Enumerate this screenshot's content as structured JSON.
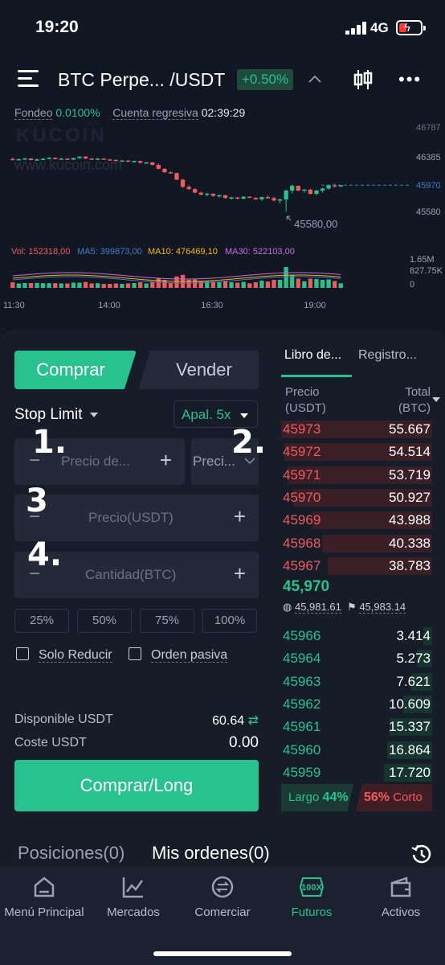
{
  "status": {
    "time": "19:20",
    "network": "4G"
  },
  "header": {
    "pair": "BTC Perpe... /USDT",
    "change": "+0.50%"
  },
  "funding": {
    "label": "Fondeo",
    "rate": "0.0100%",
    "countdown_label": "Cuenta regresiva",
    "countdown": "02:39:29"
  },
  "chart": {
    "watermark": "www.kucoin.com",
    "watermark_logo": "KUCOIN",
    "price_ticks": [
      "46385",
      "45970",
      "45580"
    ],
    "top_tick_partial": "46787",
    "low_label": "45580,00",
    "volume_label": "Vol: 152318,00",
    "ma5": "MA5: 399873,00",
    "ma10": "MA10: 476469,10",
    "ma30": "MA30: 522103,00",
    "volume_ticks": [
      "1.65M",
      "827.75K",
      "0"
    ],
    "time_ticks": [
      "11:30",
      "14:00",
      "16:30",
      "19:00"
    ]
  },
  "chart_data": {
    "type": "candlestick",
    "title": "",
    "x": [
      "11:30",
      "14:00",
      "16:30",
      "19:00"
    ],
    "ylim": [
      45500,
      46800
    ],
    "last_price": 45970,
    "low_marker": 45580,
    "series": [
      {
        "name": "",
        "ohlc": [
          [
            46355,
            46375,
            46335,
            46345
          ],
          [
            46345,
            46360,
            46335,
            46352
          ],
          [
            46352,
            46372,
            46342,
            46362
          ],
          [
            46362,
            46365,
            46335,
            46338
          ],
          [
            46338,
            46360,
            46328,
            46350
          ],
          [
            46350,
            46368,
            46340,
            46358
          ],
          [
            46358,
            46380,
            46352,
            46372
          ],
          [
            46372,
            46376,
            46348,
            46352
          ],
          [
            46352,
            46370,
            46345,
            46360
          ],
          [
            46360,
            46364,
            46340,
            46345
          ],
          [
            46345,
            46375,
            46340,
            46368
          ],
          [
            46368,
            46395,
            46360,
            46390
          ],
          [
            46390,
            46398,
            46355,
            46360
          ],
          [
            46360,
            46370,
            46345,
            46350
          ],
          [
            46350,
            46368,
            46340,
            46360
          ],
          [
            46360,
            46364,
            46345,
            46348
          ],
          [
            46348,
            46356,
            46336,
            46342
          ],
          [
            46342,
            46346,
            46322,
            46328
          ],
          [
            46328,
            46338,
            46318,
            46332
          ],
          [
            46332,
            46336,
            46310,
            46318
          ],
          [
            46318,
            46330,
            46300,
            46325
          ],
          [
            46325,
            46330,
            46290,
            46298
          ],
          [
            46298,
            46310,
            46285,
            46305
          ],
          [
            46305,
            46310,
            46260,
            46268
          ],
          [
            46268,
            46290,
            46200,
            46210
          ],
          [
            46210,
            46220,
            46150,
            46160
          ],
          [
            46160,
            46175,
            46140,
            46148
          ],
          [
            46148,
            46152,
            46040,
            46050
          ],
          [
            46050,
            46062,
            45930,
            45945
          ],
          [
            45945,
            45970,
            45900,
            45912
          ],
          [
            45912,
            45924,
            45850,
            45860
          ],
          [
            45860,
            45872,
            45820,
            45830
          ],
          [
            45830,
            45860,
            45810,
            45845
          ],
          [
            45845,
            45850,
            45800,
            45812
          ],
          [
            45812,
            45830,
            45790,
            45822
          ],
          [
            45822,
            45828,
            45770,
            45782
          ],
          [
            45782,
            45800,
            45760,
            45790
          ],
          [
            45790,
            45795,
            45760,
            45772
          ],
          [
            45772,
            45810,
            45765,
            45800
          ],
          [
            45800,
            45805,
            45778,
            45785
          ],
          [
            45785,
            45790,
            45750,
            45762
          ],
          [
            45762,
            45800,
            45740,
            45795
          ],
          [
            45795,
            45820,
            45770,
            45780
          ],
          [
            45780,
            45800,
            45730,
            45745
          ],
          [
            45745,
            45770,
            45700,
            45760
          ],
          [
            45760,
            45905,
            45580,
            45890
          ],
          [
            45890,
            45975,
            45850,
            45960
          ],
          [
            45960,
            45965,
            45880,
            45890
          ],
          [
            45890,
            45912,
            45860,
            45905
          ],
          [
            45905,
            45915,
            45830,
            45842
          ],
          [
            45842,
            45900,
            45820,
            45890
          ],
          [
            45890,
            45930,
            45860,
            45920
          ],
          [
            45920,
            45980,
            45905,
            45968
          ],
          [
            45968,
            45990,
            45935,
            45950
          ],
          [
            45950,
            45972,
            45945,
            45970
          ]
        ]
      }
    ]
  },
  "trade": {
    "buy_tab": "Comprar",
    "sell_tab": "Vender",
    "order_type": "Stop Limit",
    "leverage": "Apal. 5x",
    "stop_price_placeholder": "Precio de...",
    "price_type": "Preci...",
    "price_placeholder": "Precio(USDT)",
    "qty_placeholder": "Cantidad(BTC)",
    "percents": [
      "25%",
      "50%",
      "75%",
      "100%"
    ],
    "reduce_only": "Solo Reducir",
    "post_only": "Orden pasiva",
    "available_label": "Disponible USDT",
    "available_value": "60.64",
    "cost_label": "Coste USDT",
    "cost_value": "0.00",
    "submit": "Comprar/Long",
    "annotations": [
      "1.",
      "2.",
      "3",
      "4."
    ]
  },
  "orderbook": {
    "tab_book": "Libro de...",
    "tab_trades": "Registro...",
    "head_price": [
      "Precio",
      "(USDT)"
    ],
    "head_total": [
      "Total",
      "(BTC)"
    ],
    "asks": [
      {
        "price": "45973",
        "total": "55.667",
        "depth": 1.0
      },
      {
        "price": "45972",
        "total": "54.514",
        "depth": 0.98
      },
      {
        "price": "45971",
        "total": "53.719",
        "depth": 0.96
      },
      {
        "price": "45970",
        "total": "50.927",
        "depth": 0.92
      },
      {
        "price": "45969",
        "total": "43.988",
        "depth": 0.79
      },
      {
        "price": "45968",
        "total": "40.338",
        "depth": 0.73
      },
      {
        "price": "45967",
        "total": "38.783",
        "depth": 0.69
      }
    ],
    "mid_price": "45,970",
    "index_price": "45,981.61",
    "mark_price": "45,983.14",
    "bids": [
      {
        "price": "45966",
        "total": "3.414",
        "depth": 0.06
      },
      {
        "price": "45964",
        "total": "5.273",
        "depth": 0.1
      },
      {
        "price": "45963",
        "total": "7.621",
        "depth": 0.14
      },
      {
        "price": "45962",
        "total": "10.609",
        "depth": 0.19
      },
      {
        "price": "45961",
        "total": "15.337",
        "depth": 0.28
      },
      {
        "price": "45960",
        "total": "16.864",
        "depth": 0.3
      },
      {
        "price": "45959",
        "total": "17.720",
        "depth": 0.32
      }
    ],
    "long_label": "Largo",
    "long_pct": "44%",
    "short_pct": "56%",
    "short_label": "Corto"
  },
  "lists": {
    "positions": "Posiciones(0)",
    "orders": "Mis ordenes(0)"
  },
  "nav": [
    {
      "label": "Menú Principal",
      "icon": "home-icon"
    },
    {
      "label": "Mercados",
      "icon": "market-chart-icon"
    },
    {
      "label": "Comerciar",
      "icon": "trade-swap-icon"
    },
    {
      "label": "Futuros",
      "icon": "futures-100x-icon"
    },
    {
      "label": "Activos",
      "icon": "wallet-icon"
    }
  ],
  "colors": {
    "green": "#27c28e",
    "red": "#f05a5a",
    "background": "#121724",
    "panel": "#171c29"
  }
}
